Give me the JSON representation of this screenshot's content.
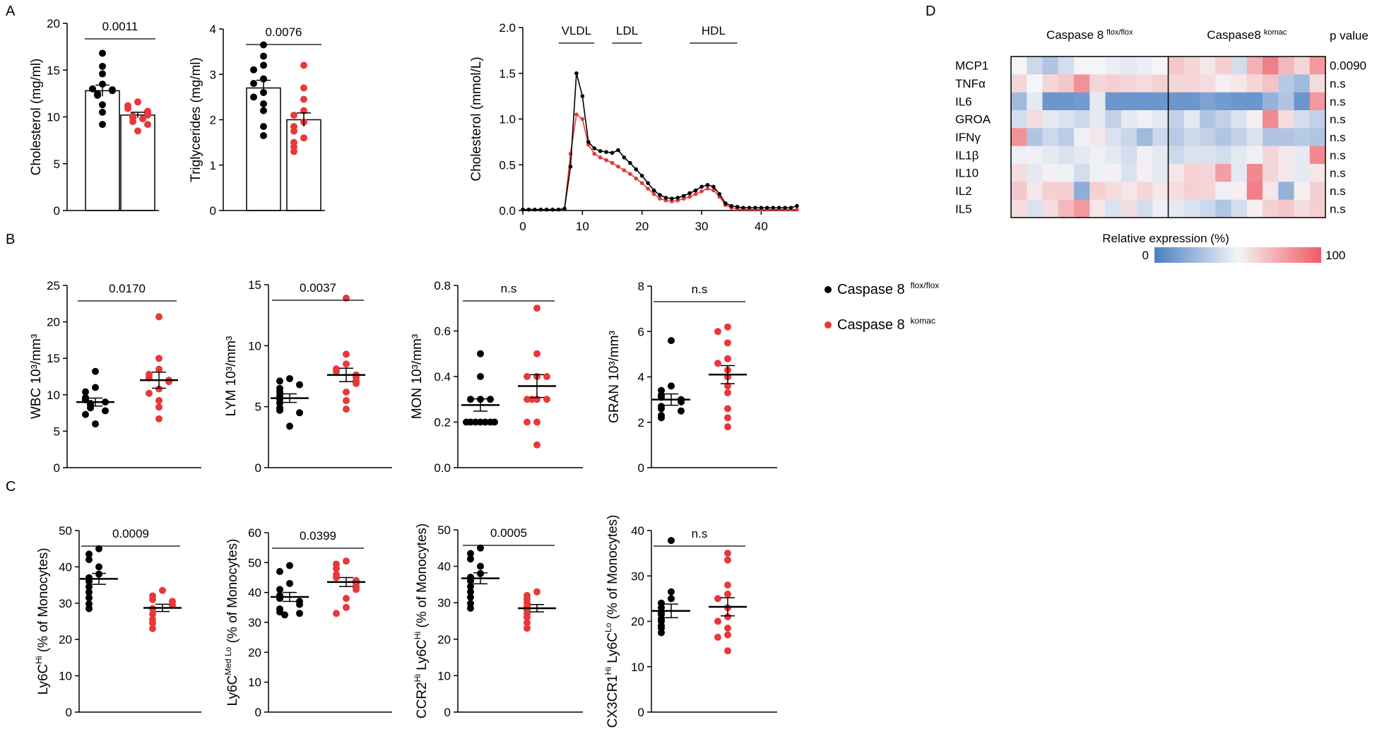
{
  "colors": {
    "flox": "#000000",
    "komac": "#e8383b",
    "heat_low": "#4a7ec4",
    "heat_mid": "#f5f5f7",
    "heat_high": "#f05a63"
  },
  "panel_labels": {
    "a": "A",
    "b": "B",
    "c": "C",
    "d": "D"
  },
  "legend": {
    "flox_name": "Caspase 8",
    "flox_sup": "flox/flox",
    "komac_name": "Caspase 8",
    "komac_sup": "komac"
  },
  "chart_data": [
    {
      "id": "chol",
      "type": "bar",
      "panel": "A",
      "ylabel": "Cholesterol (mg/ml)",
      "ylim": [
        0,
        20
      ],
      "yticks": [
        "0",
        "5",
        "10",
        "15",
        "20"
      ],
      "pvalue": "0.0011",
      "series": [
        {
          "name": "Caspase 8 flox/flox",
          "mean": 12.8,
          "sem": 0.6,
          "values": [
            16.8,
            15.4,
            14.6,
            13.5,
            13.0,
            12.9,
            12.8,
            12.5,
            12.3,
            11.3,
            10.5,
            9.2
          ]
        },
        {
          "name": "Caspase 8 komac",
          "mean": 10.2,
          "sem": 0.3,
          "values": [
            11.6,
            11.2,
            10.9,
            10.6,
            10.4,
            10.2,
            10.1,
            9.9,
            9.8,
            9.5,
            9.2,
            8.5
          ]
        }
      ]
    },
    {
      "id": "trig",
      "type": "bar",
      "panel": "A",
      "ylabel": "Triglycerides (mg/ml)",
      "ylim": [
        0,
        4
      ],
      "yticks": [
        "0",
        "1",
        "2",
        "3",
        "4"
      ],
      "pvalue": "0.0076",
      "series": [
        {
          "name": "Caspase 8 flox/flox",
          "mean": 2.7,
          "sem": 0.17,
          "values": [
            3.65,
            3.4,
            3.2,
            3.1,
            2.9,
            2.8,
            2.6,
            2.5,
            2.35,
            2.2,
            1.85,
            1.65
          ]
        },
        {
          "name": "Caspase 8 komac",
          "mean": 2.0,
          "sem": 0.15,
          "values": [
            3.2,
            2.7,
            2.45,
            2.2,
            2.1,
            1.95,
            1.85,
            1.75,
            1.6,
            1.5,
            1.4,
            1.3
          ]
        }
      ]
    },
    {
      "id": "fplc",
      "type": "line",
      "panel": "A",
      "ylabel": "Cholesterol (mmol/L)",
      "xlim": [
        0,
        46
      ],
      "ylim": [
        0,
        2.0
      ],
      "xticks": [
        "0",
        "10",
        "20",
        "30",
        "40"
      ],
      "yticks": [
        "0.0",
        "0.5",
        "1.0",
        "1.5",
        "2.0"
      ],
      "fractions": [
        {
          "label": "VLDL",
          "start": 6,
          "end": 12
        },
        {
          "label": "LDL",
          "start": 15,
          "end": 20
        },
        {
          "label": "HDL",
          "start": 28,
          "end": 36
        }
      ],
      "x": [
        0,
        1,
        2,
        3,
        4,
        5,
        6,
        7,
        8,
        9,
        10,
        11,
        12,
        13,
        14,
        15,
        16,
        17,
        18,
        19,
        20,
        21,
        22,
        23,
        24,
        25,
        26,
        27,
        28,
        29,
        30,
        31,
        32,
        33,
        34,
        35,
        36,
        37,
        38,
        39,
        40,
        41,
        42,
        43,
        44,
        45,
        46
      ],
      "series": [
        {
          "name": "Caspase 8 flox/flox",
          "values": [
            0.01,
            0.01,
            0.01,
            0.01,
            0.01,
            0.01,
            0.01,
            0.02,
            0.48,
            1.5,
            1.25,
            0.75,
            0.68,
            0.65,
            0.64,
            0.63,
            0.66,
            0.58,
            0.52,
            0.45,
            0.38,
            0.3,
            0.22,
            0.17,
            0.14,
            0.13,
            0.14,
            0.16,
            0.19,
            0.22,
            0.26,
            0.28,
            0.26,
            0.18,
            0.08,
            0.05,
            0.04,
            0.03,
            0.03,
            0.03,
            0.03,
            0.03,
            0.03,
            0.03,
            0.03,
            0.03,
            0.05
          ]
        },
        {
          "name": "Caspase 8 komac",
          "values": [
            0.01,
            0.01,
            0.01,
            0.01,
            0.01,
            0.01,
            0.01,
            0.02,
            0.62,
            1.05,
            1.0,
            0.72,
            0.62,
            0.58,
            0.55,
            0.52,
            0.48,
            0.44,
            0.4,
            0.35,
            0.3,
            0.24,
            0.18,
            0.13,
            0.11,
            0.1,
            0.11,
            0.13,
            0.15,
            0.18,
            0.21,
            0.24,
            0.22,
            0.15,
            0.06,
            0.03,
            0.02,
            0.01,
            0.01,
            0.01,
            0.01,
            0.01,
            0.01,
            0.01,
            0.01,
            0.01,
            0.01
          ]
        }
      ]
    },
    {
      "id": "wbc",
      "type": "scatter",
      "panel": "B",
      "ylabel": "WBC 10³/mm³",
      "ylim": [
        0,
        25
      ],
      "yticks": [
        "0",
        "5",
        "10",
        "15",
        "20",
        "25"
      ],
      "pvalue": "0.0170",
      "series": [
        {
          "name": "Caspase 8 flox/flox",
          "mean": 9.0,
          "sem": 0.55,
          "values": [
            13.2,
            11.0,
            10.4,
            9.6,
            9.3,
            9.0,
            8.8,
            8.6,
            8.2,
            7.8,
            7.3,
            6.0
          ]
        },
        {
          "name": "Caspase 8 komac",
          "mean": 12.0,
          "sem": 1.1,
          "values": [
            20.7,
            15.0,
            13.5,
            12.8,
            12.3,
            12.0,
            11.8,
            10.8,
            10.2,
            9.2,
            8.3,
            6.7
          ]
        }
      ]
    },
    {
      "id": "lym",
      "type": "scatter",
      "panel": "B",
      "ylabel": "LYM 10³/mm³",
      "ylim": [
        0,
        15
      ],
      "yticks": [
        "0",
        "5",
        "10",
        "15"
      ],
      "pvalue": "0.0037",
      "series": [
        {
          "name": "Caspase 8 flox/flox",
          "mean": 5.7,
          "sem": 0.35,
          "values": [
            7.3,
            7.1,
            6.8,
            6.5,
            6.2,
            5.9,
            5.6,
            5.3,
            4.9,
            4.7,
            4.5,
            3.4
          ]
        },
        {
          "name": "Caspase 8 komac",
          "mean": 7.6,
          "sem": 0.55,
          "values": [
            13.9,
            9.3,
            8.5,
            8.1,
            7.9,
            7.6,
            7.4,
            7.1,
            6.9,
            6.2,
            5.5,
            4.8
          ]
        }
      ]
    },
    {
      "id": "mon",
      "type": "scatter",
      "panel": "B",
      "ylabel": "MON 10³/mm³",
      "ylim": [
        0,
        0.8
      ],
      "yticks": [
        "0.0",
        "0.2",
        "0.4",
        "0.6",
        "0.8"
      ],
      "pvalue": "n.s",
      "series": [
        {
          "name": "Caspase 8 flox/flox",
          "mean": 0.275,
          "sem": 0.027,
          "values": [
            0.5,
            0.4,
            0.3,
            0.3,
            0.3,
            0.2,
            0.2,
            0.2,
            0.2,
            0.2,
            0.2,
            0.2
          ]
        },
        {
          "name": "Caspase 8 komac",
          "mean": 0.358,
          "sem": 0.05,
          "values": [
            0.7,
            0.5,
            0.4,
            0.4,
            0.4,
            0.3,
            0.3,
            0.3,
            0.3,
            0.2,
            0.2,
            0.1
          ]
        }
      ]
    },
    {
      "id": "gran",
      "type": "scatter",
      "panel": "B",
      "ylabel": "GRAN 10³/mm³",
      "ylim": [
        0,
        8
      ],
      "yticks": [
        "0",
        "2",
        "4",
        "6",
        "8"
      ],
      "pvalue": "n.s",
      "series": [
        {
          "name": "Caspase 8 flox/flox",
          "mean": 3.0,
          "sem": 0.25,
          "values": [
            5.6,
            3.6,
            3.4,
            3.2,
            3.1,
            3.0,
            2.9,
            2.7,
            2.6,
            2.5,
            2.3,
            2.2
          ]
        },
        {
          "name": "Caspase 8 komac",
          "mean": 4.1,
          "sem": 0.4,
          "values": [
            6.2,
            6.0,
            5.5,
            4.8,
            4.6,
            4.3,
            4.0,
            3.6,
            3.3,
            2.6,
            2.2,
            1.8
          ]
        }
      ]
    },
    {
      "id": "ly6chi",
      "type": "scatter",
      "panel": "C",
      "ylabel_main": "Ly6C",
      "ylabel_sup": "Hi",
      "ylabel_rest": " (% of Monocytes)",
      "ylim": [
        0,
        50
      ],
      "yticks": [
        "0",
        "10",
        "20",
        "30",
        "40",
        "50"
      ],
      "pvalue": "0.0009",
      "series": [
        {
          "name": "Caspase 8 flox/flox",
          "mean": 36.7,
          "sem": 1.5,
          "values": [
            45.0,
            43.5,
            42.0,
            40.0,
            38.0,
            37.0,
            36.0,
            34.5,
            33.0,
            31.5,
            29.8,
            28.5
          ]
        },
        {
          "name": "Caspase 8 komac",
          "mean": 28.7,
          "sem": 1.0,
          "values": [
            33.5,
            32.0,
            31.0,
            30.5,
            29.5,
            28.5,
            27.0,
            25.5,
            24.5,
            23.0
          ]
        }
      ]
    },
    {
      "id": "ly6cmedlo",
      "type": "scatter",
      "panel": "C",
      "ylabel_main": "Ly6C",
      "ylabel_sup": "Med Lo",
      "ylabel_rest": " (% of Monocytes)",
      "ylim": [
        0,
        60
      ],
      "yticks": [
        "0",
        "10",
        "20",
        "30",
        "40",
        "50",
        "60"
      ],
      "pvalue": "0.0399",
      "series": [
        {
          "name": "Caspase 8 flox/flox",
          "mean": 38.5,
          "sem": 1.5,
          "values": [
            49.0,
            47.0,
            43.0,
            41.0,
            39.0,
            38.0,
            37.0,
            36.0,
            34.5,
            33.5,
            33.0,
            32.5
          ]
        },
        {
          "name": "Caspase 8 komac",
          "mean": 43.5,
          "sem": 1.5,
          "values": [
            50.5,
            49.5,
            48.0,
            46.0,
            45.0,
            44.0,
            43.0,
            42.0,
            41.0,
            38.0,
            35.0,
            33.0
          ]
        }
      ]
    },
    {
      "id": "ccr2",
      "type": "scatter",
      "panel": "C",
      "ylabel_parts": [
        "CCR2",
        "Hi",
        " Ly6C",
        "Hi",
        " (% of Monocytes)"
      ],
      "ylim": [
        0,
        50
      ],
      "yticks": [
        "0",
        "10",
        "20",
        "30",
        "40",
        "50"
      ],
      "pvalue": "0.0005",
      "series": [
        {
          "name": "Caspase 8 flox/flox",
          "mean": 36.7,
          "sem": 1.5,
          "values": [
            45.0,
            43.5,
            42.0,
            40.0,
            38.0,
            37.0,
            36.0,
            34.5,
            33.0,
            31.5,
            29.8,
            28.5
          ]
        },
        {
          "name": "Caspase 8 komac",
          "mean": 28.5,
          "sem": 1.0,
          "values": [
            33.0,
            32.0,
            31.0,
            30.0,
            29.0,
            28.0,
            27.0,
            26.0,
            24.5,
            23.0
          ]
        }
      ]
    },
    {
      "id": "cx3cr1",
      "type": "scatter",
      "panel": "C",
      "ylabel_parts": [
        "CX3CR1",
        "Hi",
        " Ly6C",
        "Lo",
        " (% of Monocytes)"
      ],
      "ylim": [
        0,
        40
      ],
      "yticks": [
        "0",
        "10",
        "20",
        "30",
        "40"
      ],
      "pvalue": "n.s",
      "series": [
        {
          "name": "Caspase 8 flox/flox",
          "mean": 22.3,
          "sem": 1.5,
          "values": [
            37.8,
            26.5,
            25.0,
            24.0,
            23.0,
            22.0,
            21.5,
            20.5,
            20.0,
            19.0,
            18.5,
            17.5
          ]
        },
        {
          "name": "Caspase 8 komac",
          "mean": 23.2,
          "sem": 2.0,
          "values": [
            35.0,
            33.5,
            28.0,
            26.0,
            25.0,
            23.0,
            21.0,
            20.0,
            18.5,
            17.0,
            16.5,
            13.5
          ]
        }
      ]
    },
    {
      "id": "heatmap",
      "type": "heatmap",
      "panel": "D",
      "group_labels": [
        {
          "name": "Caspase 8",
          "sup": "flox/flox"
        },
        {
          "name": "Caspase8",
          "sup": "komac"
        }
      ],
      "pvalue_header": "p value",
      "rows": [
        "MCP1",
        "TNFα",
        "IL6",
        "GROA",
        "IFNγ",
        "IL1β",
        "IL10",
        "IL2",
        "IL5"
      ],
      "pvalues": [
        "0.0090",
        "n.s",
        "n.s",
        "n.s",
        "n.s",
        "n.s",
        "n.s",
        "n.s",
        "n.s"
      ],
      "colorbar_label": "Relative expression (%)",
      "colorbar_min": "0",
      "colorbar_max": "100",
      "n_flox": 10,
      "values": [
        [
          50,
          38,
          30,
          40,
          50,
          50,
          47,
          45,
          47,
          50,
          65,
          60,
          55,
          62,
          40,
          72,
          88,
          70,
          60,
          80
        ],
        [
          60,
          50,
          60,
          65,
          82,
          60,
          62,
          60,
          58,
          62,
          60,
          60,
          58,
          52,
          55,
          60,
          66,
          32,
          25,
          58
        ],
        [
          25,
          45,
          10,
          10,
          12,
          45,
          10,
          10,
          10,
          10,
          10,
          10,
          15,
          12,
          10,
          10,
          22,
          30,
          10,
          80
        ],
        [
          40,
          58,
          45,
          42,
          38,
          45,
          35,
          45,
          48,
          45,
          35,
          45,
          30,
          35,
          42,
          52,
          85,
          58,
          40,
          35
        ],
        [
          82,
          30,
          38,
          33,
          48,
          55,
          42,
          37,
          25,
          38,
          32,
          38,
          35,
          30,
          35,
          42,
          30,
          30,
          32,
          30
        ],
        [
          48,
          48,
          45,
          42,
          45,
          48,
          45,
          40,
          48,
          45,
          38,
          42,
          42,
          40,
          45,
          48,
          60,
          55,
          45,
          85
        ],
        [
          58,
          45,
          52,
          48,
          40,
          48,
          52,
          42,
          52,
          45,
          55,
          62,
          60,
          78,
          45,
          85,
          60,
          55,
          45,
          55
        ],
        [
          65,
          55,
          62,
          62,
          20,
          62,
          58,
          55,
          60,
          55,
          58,
          62,
          60,
          48,
          52,
          88,
          55,
          22,
          52,
          62
        ],
        [
          58,
          42,
          58,
          70,
          80,
          55,
          42,
          58,
          40,
          48,
          45,
          42,
          38,
          30,
          40,
          52,
          62,
          65,
          58,
          62
        ]
      ]
    }
  ]
}
